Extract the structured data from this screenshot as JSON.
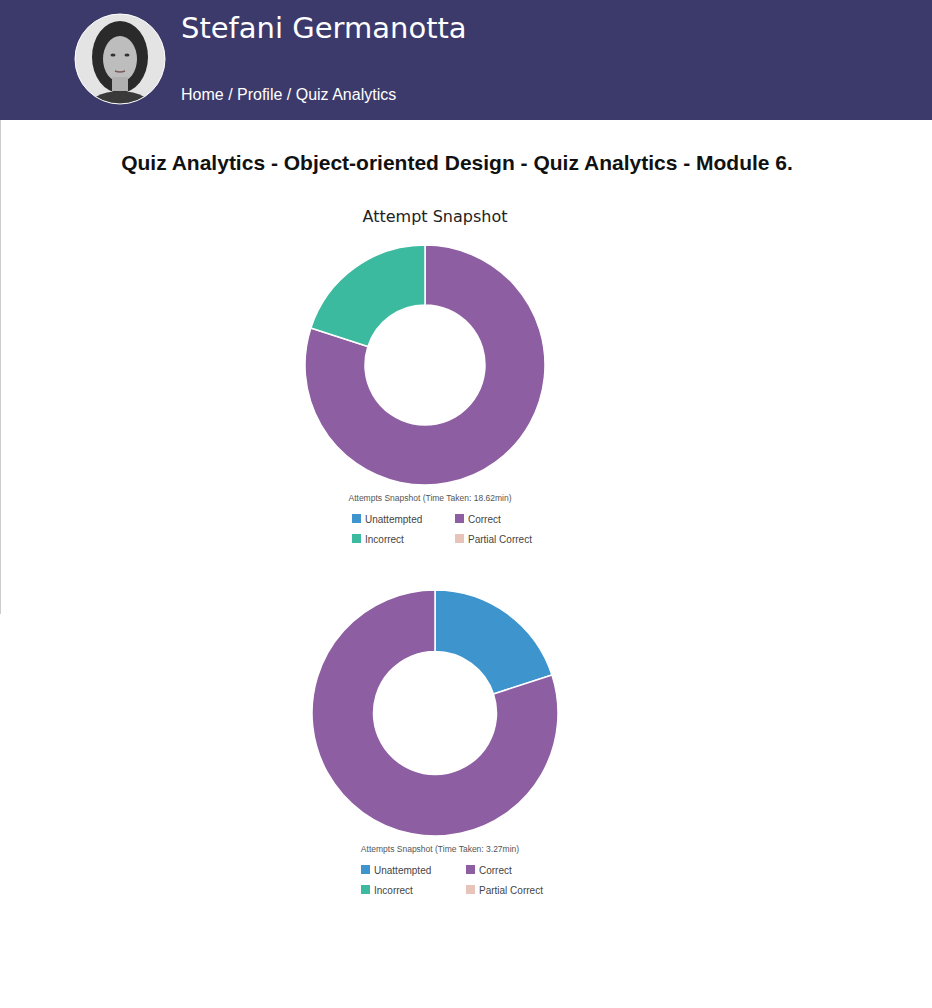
{
  "header": {
    "name": "Stefani Germanotta",
    "breadcrumb": "Home / Profile / Quiz Analytics"
  },
  "page_title": "Quiz Analytics - Object-oriented Design - Quiz Analytics - Module 6.",
  "chart_data": [
    {
      "type": "doughnut",
      "title": "Attempt Snapshot",
      "subtitle": "Attempts Snapshot (Time Taken: 18.62min)",
      "categories": [
        "Unattempted",
        "Correct",
        "Incorrect",
        "Partial Correct"
      ],
      "values": [
        0,
        80,
        20,
        0
      ],
      "colors": [
        "#3e95cd",
        "#8e5ea2",
        "#3cba9f",
        "#e8c3b9"
      ],
      "legend": "bottom"
    },
    {
      "type": "doughnut",
      "subtitle": "Attempts Snapshot (Time Taken: 3.27min)",
      "categories": [
        "Unattempted",
        "Correct",
        "Incorrect",
        "Partial Correct"
      ],
      "values": [
        20,
        80,
        0,
        0
      ],
      "colors": [
        "#3e95cd",
        "#8e5ea2",
        "#3cba9f",
        "#e8c3b9"
      ],
      "legend": "bottom"
    }
  ]
}
